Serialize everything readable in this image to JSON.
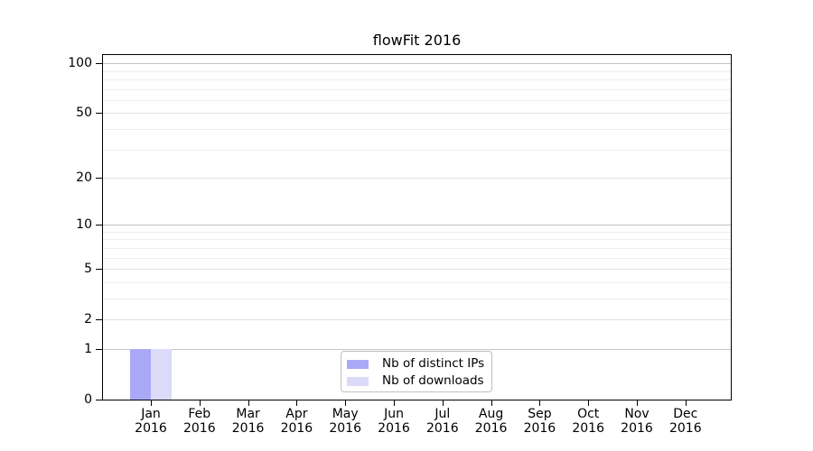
{
  "title": "flowFit 2016",
  "legend": {
    "entries": [
      {
        "label": "Nb of distinct IPs",
        "color": "#a9a9f7"
      },
      {
        "label": "Nb of downloads",
        "color": "#dbdbf9"
      }
    ]
  },
  "y_axis": {
    "tick_labels": [
      "0",
      "1",
      "2",
      "5",
      "10",
      "20",
      "50",
      "100"
    ]
  },
  "x_axis": {
    "months": [
      "Jan",
      "Feb",
      "Mar",
      "Apr",
      "May",
      "Jun",
      "Jul",
      "Aug",
      "Sep",
      "Oct",
      "Nov",
      "Dec"
    ],
    "year": "2016"
  },
  "chart_data": {
    "type": "bar",
    "title": "flowFit 2016",
    "categories": [
      "Jan 2016",
      "Feb 2016",
      "Mar 2016",
      "Apr 2016",
      "May 2016",
      "Jun 2016",
      "Jul 2016",
      "Aug 2016",
      "Sep 2016",
      "Oct 2016",
      "Nov 2016",
      "Dec 2016"
    ],
    "series": [
      {
        "name": "Nb of distinct IPs",
        "color": "#a9a9f7",
        "values": [
          1,
          0,
          0,
          0,
          0,
          0,
          0,
          0,
          0,
          0,
          0,
          0
        ]
      },
      {
        "name": "Nb of downloads",
        "color": "#dbdbf9",
        "values": [
          1,
          0,
          0,
          0,
          0,
          0,
          0,
          0,
          0,
          0,
          0,
          0
        ]
      }
    ],
    "y_scale": "log10(1+x)",
    "y_ticks": [
      0,
      1,
      2,
      5,
      10,
      20,
      50,
      100
    ],
    "y_major_gridlines": [
      1,
      10,
      100
    ],
    "y_mid_gridlines": [
      2,
      5,
      20,
      50
    ],
    "y_minor_gridlines": [
      3,
      4,
      6,
      7,
      8,
      9,
      30,
      40,
      60,
      70,
      80,
      90
    ],
    "ylim": [
      0,
      113
    ],
    "grid": true,
    "legend_position": "bottom-center"
  }
}
